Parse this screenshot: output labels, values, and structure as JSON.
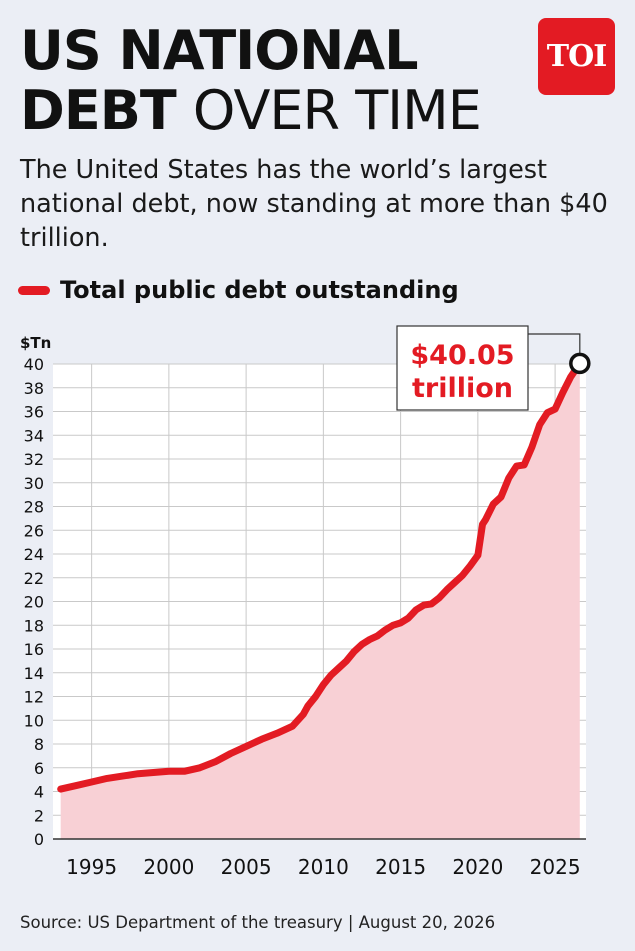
{
  "header": {
    "title_line1": "US NATIONAL",
    "title_line2_bold": "DEBT",
    "title_line2_rest": "OVER TIME",
    "subtitle": "The United States has the world’s largest national debt, now standing at more than $40 trillion.",
    "logo_text": "TOI"
  },
  "legend": {
    "label": "Total public debt outstanding",
    "color": "#e31b23"
  },
  "annotation": {
    "line1": "$40.05",
    "line2": "trillion"
  },
  "source": "Source: US Department of the treasury | August 20, 2026",
  "chart_data": {
    "type": "area",
    "ylabel": "$Tn",
    "ylim": [
      0,
      40
    ],
    "yticks": [
      0,
      2,
      4,
      6,
      8,
      10,
      12,
      14,
      16,
      18,
      20,
      22,
      24,
      26,
      28,
      30,
      32,
      34,
      36,
      38,
      40
    ],
    "xlim": [
      1992.5,
      2027
    ],
    "xticks": [
      1995,
      2000,
      2005,
      2010,
      2015,
      2020,
      2025
    ],
    "grid": true,
    "line_color": "#e31b23",
    "fill_color": "#f8d0d5",
    "series": [
      {
        "name": "Total public debt outstanding",
        "x": [
          1993,
          1994,
          1995,
          1996,
          1997,
          1998,
          1999,
          2000,
          2001,
          2002,
          2003,
          2004,
          2005,
          2006,
          2007,
          2008,
          2008.7,
          2009,
          2009.5,
          2010,
          2010.5,
          2011,
          2011.5,
          2012,
          2012.5,
          2013,
          2013.5,
          2014,
          2014.5,
          2015,
          2015.5,
          2016,
          2016.5,
          2017,
          2017.5,
          2018,
          2018.5,
          2019,
          2019.5,
          2020,
          2020.3,
          2020.5,
          2021,
          2021.5,
          2022,
          2022.5,
          2023,
          2023.5,
          2024,
          2024.5,
          2025,
          2025.5,
          2026,
          2026.6
        ],
        "y": [
          4.2,
          4.5,
          4.8,
          5.1,
          5.3,
          5.5,
          5.6,
          5.7,
          5.7,
          6.0,
          6.5,
          7.2,
          7.8,
          8.4,
          8.9,
          9.5,
          10.5,
          11.2,
          12.0,
          13.0,
          13.8,
          14.4,
          15.0,
          15.8,
          16.4,
          16.8,
          17.1,
          17.6,
          18.0,
          18.2,
          18.6,
          19.3,
          19.7,
          19.8,
          20.3,
          21.0,
          21.6,
          22.2,
          23.0,
          23.9,
          26.5,
          26.9,
          28.2,
          28.8,
          30.4,
          31.4,
          31.5,
          33.0,
          34.9,
          35.9,
          36.2,
          37.6,
          38.9,
          40.05
        ]
      }
    ],
    "annotated_point": {
      "x": 2026.6,
      "y": 40.05,
      "label": "$40.05 trillion"
    }
  }
}
